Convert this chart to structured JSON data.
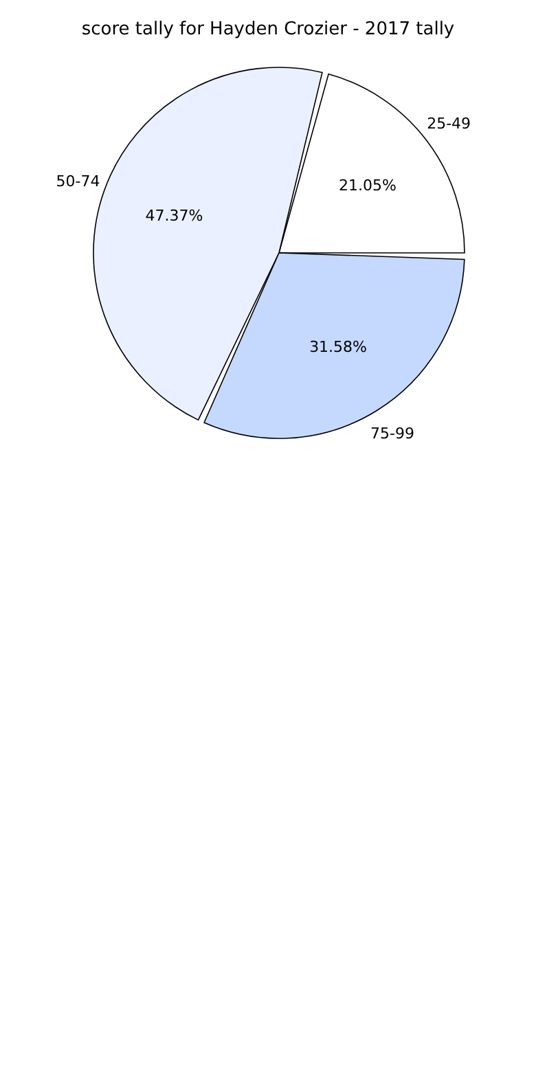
{
  "chart_data": {
    "type": "pie",
    "title": "score tally for Hayden Crozier - 2017 tally",
    "categories": [
      "25-49",
      "50-74",
      "75-99"
    ],
    "values": [
      21.05,
      47.37,
      31.58
    ],
    "value_labels": [
      "21.05%",
      "47.37%",
      "31.58%"
    ],
    "colors": [
      "#ffffff",
      "#eaf0ff",
      "#c5d9ff"
    ],
    "legend": false
  }
}
